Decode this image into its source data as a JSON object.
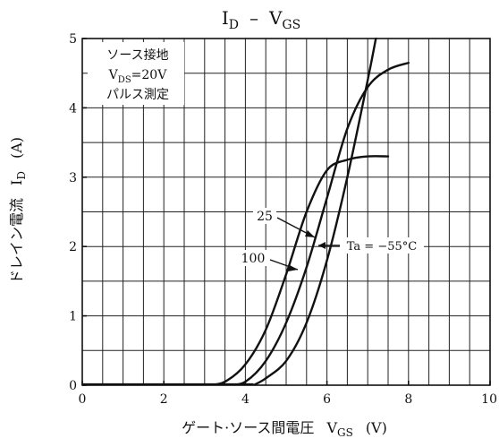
{
  "chart_data": {
    "type": "line",
    "title": "I_D – V_GS",
    "title_main_1": "I",
    "title_sub_1": "D",
    "title_sep": "–",
    "title_main_2": "V",
    "title_sub_2": "GS",
    "xlabel_text": "ゲート·ソース間電圧",
    "xlabel_symbol": "V",
    "xlabel_sub": "GS",
    "xlabel_unit": "(V)",
    "ylabel_text": "ドレイン電流",
    "ylabel_symbol": "I",
    "ylabel_sub": "D",
    "ylabel_unit": "(A)",
    "xlim": [
      0,
      10
    ],
    "ylim": [
      0,
      5
    ],
    "x_ticks": [
      "0",
      "2",
      "4",
      "6",
      "8",
      "10"
    ],
    "y_ticks": [
      "0",
      "1",
      "2",
      "3",
      "4",
      "5"
    ],
    "grid": true,
    "conditions": {
      "line1": "ソース接地",
      "line2_main": "V",
      "line2_sub": "DS",
      "line2_rest": "=20V",
      "line3": "パルス測定"
    },
    "series": [
      {
        "name": "Ta=−55°C",
        "x": [
          3.1,
          3.5,
          4.0,
          4.5,
          5.0,
          5.5,
          6.0,
          6.5,
          7.0,
          7.5
        ],
        "y": [
          0.0,
          0.05,
          0.3,
          0.8,
          1.6,
          2.5,
          3.1,
          3.25,
          3.3,
          3.3
        ]
      },
      {
        "name": "25",
        "x": [
          3.6,
          4.0,
          4.5,
          5.0,
          5.5,
          6.0,
          6.5,
          7.0,
          7.5,
          8.0
        ],
        "y": [
          0.0,
          0.05,
          0.35,
          0.9,
          1.7,
          2.7,
          3.7,
          4.3,
          4.55,
          4.65
        ]
      },
      {
        "name": "100",
        "x": [
          4.2,
          4.5,
          5.0,
          5.5,
          6.0,
          6.5,
          7.0,
          7.2
        ],
        "y": [
          0.0,
          0.1,
          0.35,
          0.9,
          1.8,
          3.0,
          4.4,
          5.0
        ]
      }
    ],
    "annotations": [
      {
        "text": "25",
        "series": "25"
      },
      {
        "text": "100",
        "series": "100"
      },
      {
        "text": "Ta = −55°C",
        "series": "Ta=−55°C"
      }
    ]
  }
}
